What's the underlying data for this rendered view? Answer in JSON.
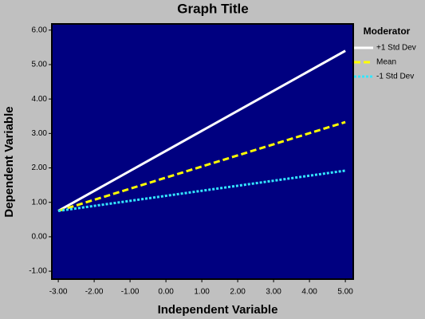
{
  "chart_data": {
    "type": "line",
    "title": "Graph Title",
    "x_label": "Independent Variable",
    "y_label": "Dependent Variable",
    "legend_title": "Moderator",
    "x": [
      -3,
      5
    ],
    "series": [
      {
        "name": "+1 Std Dev",
        "color": "#ffffff",
        "style": "solid",
        "values": [
          0.75,
          5.4
        ]
      },
      {
        "name": "Mean",
        "color": "#ffff00",
        "style": "dashed",
        "values": [
          0.75,
          3.33
        ]
      },
      {
        "name": "-1 Std Dev",
        "color": "#33e6ff",
        "style": "dotted",
        "values": [
          0.75,
          1.92
        ]
      }
    ],
    "xlim": [
      -3.18,
      5.22
    ],
    "xticks": [
      {
        "value": -3,
        "label": "-3.00"
      },
      {
        "value": -2,
        "label": "-2.00"
      },
      {
        "value": -1,
        "label": "-1.00"
      },
      {
        "value": 0,
        "label": "0.00"
      },
      {
        "value": 1,
        "label": "1.00"
      },
      {
        "value": 2,
        "label": "2.00"
      },
      {
        "value": 3,
        "label": "3.00"
      },
      {
        "value": 4,
        "label": "4.00"
      },
      {
        "value": 5,
        "label": "5.00"
      }
    ],
    "ylim": [
      -1.23,
      6.18
    ],
    "yticks": [
      {
        "value": -1,
        "label": "-1.00"
      },
      {
        "value": 0,
        "label": "0.00"
      },
      {
        "value": 1,
        "label": "1.00"
      },
      {
        "value": 2,
        "label": "2.00"
      },
      {
        "value": 3,
        "label": "3.00"
      },
      {
        "value": 4,
        "label": "4.00"
      },
      {
        "value": 5,
        "label": "5.00"
      },
      {
        "value": 6,
        "label": "6.00"
      }
    ],
    "plot_background": "#000080",
    "legend": "right"
  }
}
